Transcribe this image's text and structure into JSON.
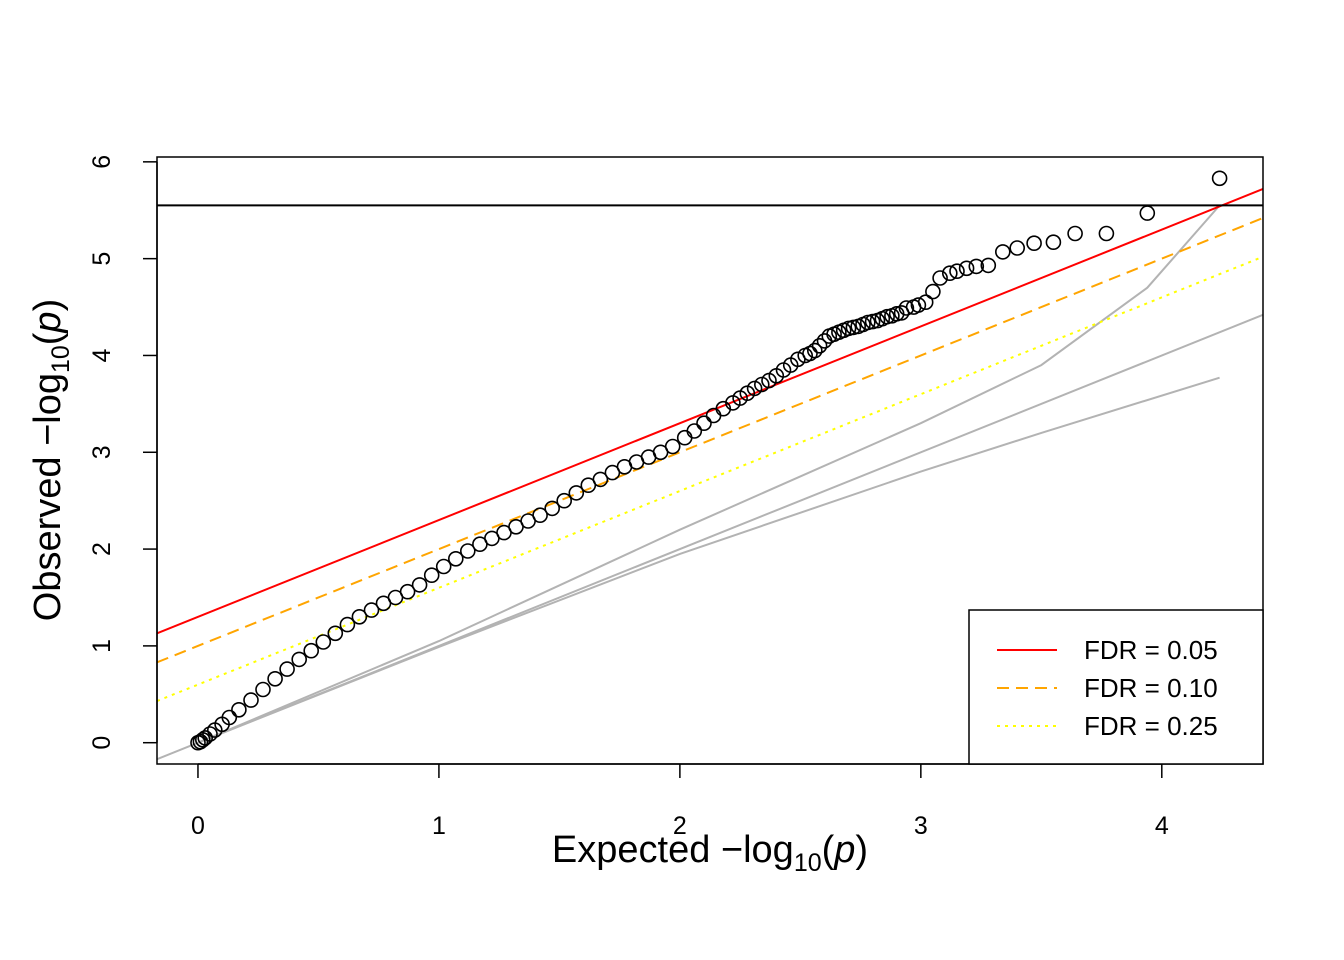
{
  "chart_data": {
    "type": "scatter",
    "title": "",
    "xlabel": {
      "prefix": "Expected  −log",
      "subscript": "10",
      "open": "(",
      "var": "p",
      "close": ")"
    },
    "ylabel": {
      "prefix": "Observed  −log",
      "subscript": "10",
      "open": "(",
      "var": "p",
      "close": ")"
    },
    "xlim": [
      -0.17,
      4.42
    ],
    "ylim": [
      -0.22,
      6.05
    ],
    "x_ticks": [
      "0",
      "1",
      "2",
      "3",
      "4"
    ],
    "y_ticks": [
      "0",
      "1",
      "2",
      "3",
      "4",
      "5",
      "6"
    ],
    "grid": false,
    "legend_position": "bottom-right",
    "threshold_line": {
      "y": 5.55,
      "color": "#000000"
    },
    "qq_points": [
      [
        4.24,
        5.83
      ],
      [
        3.94,
        5.47
      ],
      [
        3.77,
        5.26
      ],
      [
        3.64,
        5.26
      ],
      [
        3.55,
        5.17
      ],
      [
        3.47,
        5.16
      ],
      [
        3.4,
        5.11
      ],
      [
        3.34,
        5.07
      ],
      [
        3.28,
        4.93
      ],
      [
        3.23,
        4.92
      ],
      [
        3.19,
        4.9
      ],
      [
        3.15,
        4.87
      ],
      [
        3.12,
        4.85
      ],
      [
        3.08,
        4.8
      ],
      [
        3.05,
        4.66
      ],
      [
        3.02,
        4.55
      ],
      [
        2.99,
        4.52
      ],
      [
        2.97,
        4.5
      ],
      [
        2.94,
        4.49
      ],
      [
        2.92,
        4.44
      ],
      [
        2.9,
        4.43
      ],
      [
        2.88,
        4.41
      ],
      [
        2.86,
        4.4
      ],
      [
        2.84,
        4.38
      ],
      [
        2.82,
        4.36
      ],
      [
        2.8,
        4.35
      ],
      [
        2.78,
        4.34
      ],
      [
        2.76,
        4.32
      ],
      [
        2.74,
        4.3
      ],
      [
        2.72,
        4.29
      ],
      [
        2.7,
        4.28
      ],
      [
        2.68,
        4.26
      ],
      [
        2.66,
        4.24
      ],
      [
        2.64,
        4.22
      ],
      [
        2.62,
        4.2
      ],
      [
        2.6,
        4.15
      ],
      [
        2.58,
        4.1
      ],
      [
        2.56,
        4.05
      ],
      [
        2.54,
        4.02
      ],
      [
        2.52,
        4.0
      ],
      [
        2.49,
        3.96
      ],
      [
        2.46,
        3.9
      ],
      [
        2.43,
        3.85
      ],
      [
        2.4,
        3.79
      ],
      [
        2.37,
        3.74
      ],
      [
        2.34,
        3.7
      ],
      [
        2.31,
        3.66
      ],
      [
        2.28,
        3.61
      ],
      [
        2.25,
        3.56
      ],
      [
        2.22,
        3.51
      ],
      [
        2.18,
        3.45
      ],
      [
        2.14,
        3.38
      ],
      [
        2.1,
        3.3
      ],
      [
        2.06,
        3.22
      ],
      [
        2.02,
        3.15
      ],
      [
        1.97,
        3.06
      ],
      [
        1.92,
        3.0
      ],
      [
        1.87,
        2.95
      ],
      [
        1.82,
        2.9
      ],
      [
        1.77,
        2.85
      ],
      [
        1.72,
        2.79
      ],
      [
        1.67,
        2.72
      ],
      [
        1.62,
        2.66
      ],
      [
        1.57,
        2.58
      ],
      [
        1.52,
        2.5
      ],
      [
        1.47,
        2.42
      ],
      [
        1.42,
        2.35
      ],
      [
        1.37,
        2.29
      ],
      [
        1.32,
        2.23
      ],
      [
        1.27,
        2.17
      ],
      [
        1.22,
        2.11
      ],
      [
        1.17,
        2.05
      ],
      [
        1.12,
        1.98
      ],
      [
        1.07,
        1.9
      ],
      [
        1.02,
        1.82
      ],
      [
        0.97,
        1.73
      ],
      [
        0.92,
        1.63
      ],
      [
        0.87,
        1.56
      ],
      [
        0.82,
        1.5
      ],
      [
        0.77,
        1.44
      ],
      [
        0.72,
        1.37
      ],
      [
        0.67,
        1.3
      ],
      [
        0.62,
        1.22
      ],
      [
        0.57,
        1.13
      ],
      [
        0.52,
        1.04
      ],
      [
        0.47,
        0.95
      ],
      [
        0.42,
        0.86
      ],
      [
        0.37,
        0.76
      ],
      [
        0.32,
        0.66
      ],
      [
        0.27,
        0.55
      ],
      [
        0.22,
        0.44
      ],
      [
        0.17,
        0.34
      ],
      [
        0.13,
        0.26
      ],
      [
        0.1,
        0.19
      ],
      [
        0.07,
        0.13
      ],
      [
        0.05,
        0.09
      ],
      [
        0.03,
        0.05
      ],
      [
        0.02,
        0.03
      ],
      [
        0.01,
        0.01
      ],
      [
        0.0,
        0.0
      ]
    ],
    "fdr_lines": [
      {
        "name": "FDR = 0.05",
        "intercept": 1.3,
        "slope": 1.0,
        "color": "#ff0000",
        "dash": "solid"
      },
      {
        "name": "FDR = 0.10",
        "intercept": 1.0,
        "slope": 1.0,
        "color": "#ffa500",
        "dash": "dashed"
      },
      {
        "name": "FDR = 0.25",
        "intercept": 0.6,
        "slope": 1.0,
        "color": "#ffff00",
        "dash": "dotted"
      }
    ],
    "reference_curves": {
      "color": "#b3b3b3",
      "identity": [
        [
          -0.17,
          -0.17
        ],
        [
          4.42,
          4.42
        ]
      ],
      "upper_bound": [
        [
          0,
          0
        ],
        [
          1,
          1.05
        ],
        [
          2,
          2.2
        ],
        [
          3,
          3.3
        ],
        [
          3.5,
          3.9
        ],
        [
          3.94,
          4.7
        ],
        [
          4.24,
          5.55
        ]
      ],
      "lower_bound": [
        [
          0,
          0
        ],
        [
          1,
          0.99
        ],
        [
          2,
          1.95
        ],
        [
          3,
          2.8
        ],
        [
          3.5,
          3.2
        ],
        [
          4.24,
          3.77
        ]
      ]
    }
  }
}
